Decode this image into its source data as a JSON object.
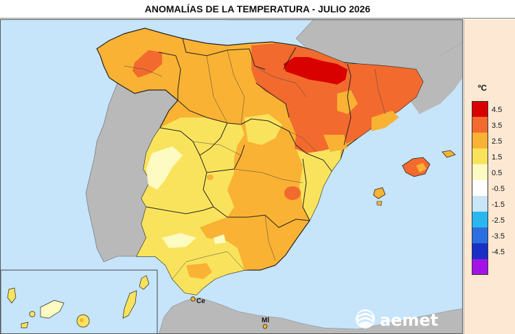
{
  "title": "ANOMALÍAS DE LA TEMPERATURA - JULIO 2026",
  "legend": {
    "unit": "ºC",
    "items": [
      {
        "label": "4.5",
        "color": "#d90000"
      },
      {
        "label": "3.5",
        "color": "#f26a2e"
      },
      {
        "label": "2.5",
        "color": "#f9b233"
      },
      {
        "label": "1.5",
        "color": "#f9e35c"
      },
      {
        "label": "0.5",
        "color": "#fdfbc2"
      },
      {
        "label": "-0.5",
        "color": "#ffffff"
      },
      {
        "label": "-1.5",
        "color": "#c8e6f8"
      },
      {
        "label": "-2.5",
        "color": "#2ab7ef"
      },
      {
        "label": "-3.5",
        "color": "#2b6ee0"
      },
      {
        "label": "-4.5",
        "color": "#1a2fc4"
      },
      {
        "label": "",
        "color": "#a312e6"
      }
    ]
  },
  "cities": {
    "ceuta": "Ce",
    "melilla": "Ml"
  },
  "brand": {
    "icon": "aemet-logo-icon",
    "name": "aemet"
  },
  "colors": {
    "sea": "#c6e4fa",
    "foreign_land": "#b9b9b9",
    "border": "#222222"
  }
}
